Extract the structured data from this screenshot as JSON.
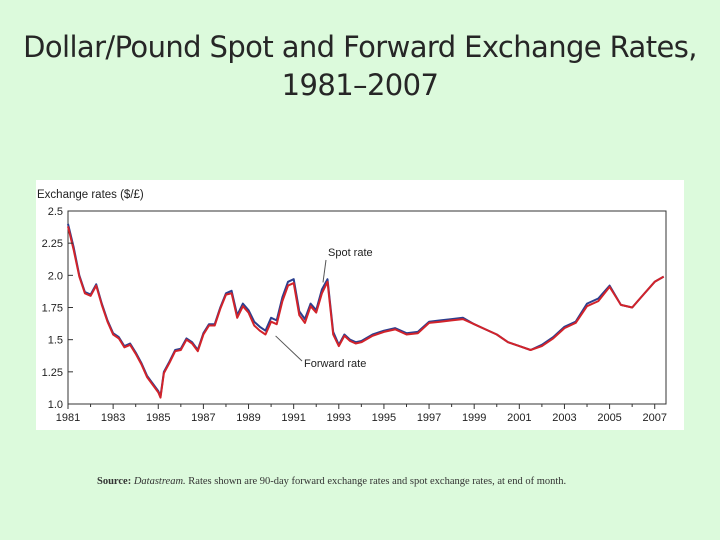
{
  "slide": {
    "title_line1": "Dollar/Pound Spot and Forward Exchange Rates,",
    "title_line2": "1981–2007"
  },
  "source": {
    "label": "Source:",
    "database": "Datastream.",
    "text": " Rates shown are 90-day forward exchange rates and spot exchange rates, at end of month."
  },
  "colors": {
    "spot": "#2b3f8f",
    "forward": "#d2232a",
    "axis": "#333333",
    "annotation_line": "#555555"
  },
  "chart_data": {
    "type": "line",
    "title": "",
    "ylabel": "Exchange rates ($/£)",
    "xlabel": "",
    "xlim": [
      1981,
      2007.5
    ],
    "ylim": [
      1.0,
      2.5
    ],
    "x_ticks": [
      "1981",
      "1983",
      "1985",
      "1987",
      "1989",
      "1991",
      "1993",
      "1995",
      "1997",
      "1999",
      "2001",
      "2003",
      "2005",
      "2007"
    ],
    "y_ticks": [
      "1.0",
      "1.25",
      "1.5",
      "1.75",
      "2.0",
      "2.25",
      "2.5"
    ],
    "annotations": [
      {
        "text": "Spot rate",
        "points_to_year": 1992.3,
        "points_to_value": 1.96
      },
      {
        "text": "Forward rate",
        "points_to_year": 1990.2,
        "points_to_value": 1.56
      }
    ],
    "series": [
      {
        "name": "Spot rate",
        "x": [
          1981.0,
          1981.25,
          1981.5,
          1981.75,
          1982.0,
          1982.25,
          1982.5,
          1982.75,
          1983.0,
          1983.25,
          1983.5,
          1983.75,
          1984.0,
          1984.25,
          1984.5,
          1984.75,
          1985.0,
          1985.1,
          1985.25,
          1985.5,
          1985.75,
          1986.0,
          1986.25,
          1986.5,
          1986.75,
          1987.0,
          1987.25,
          1987.5,
          1987.75,
          1988.0,
          1988.25,
          1988.5,
          1988.75,
          1989.0,
          1989.25,
          1989.5,
          1989.75,
          1990.0,
          1990.25,
          1990.5,
          1990.75,
          1991.0,
          1991.25,
          1991.5,
          1991.75,
          1992.0,
          1992.25,
          1992.5,
          1992.75,
          1993.0,
          1993.25,
          1993.5,
          1993.75,
          1994.0,
          1994.5,
          1995.0,
          1995.5,
          1996.0,
          1996.5,
          1997.0,
          1997.5,
          1998.0,
          1998.5,
          1999.0,
          1999.5,
          2000.0,
          2000.5,
          2001.0,
          2001.5,
          2002.0,
          2002.5,
          2003.0,
          2003.5,
          2004.0,
          2004.5,
          2005.0,
          2005.5,
          2006.0,
          2006.5,
          2007.0,
          2007.4
        ],
        "values": [
          2.4,
          2.22,
          2.0,
          1.87,
          1.85,
          1.93,
          1.78,
          1.65,
          1.55,
          1.52,
          1.45,
          1.47,
          1.4,
          1.32,
          1.22,
          1.16,
          1.1,
          1.06,
          1.25,
          1.33,
          1.42,
          1.43,
          1.51,
          1.48,
          1.42,
          1.55,
          1.62,
          1.62,
          1.75,
          1.86,
          1.88,
          1.69,
          1.78,
          1.73,
          1.64,
          1.6,
          1.57,
          1.67,
          1.65,
          1.83,
          1.95,
          1.97,
          1.72,
          1.66,
          1.78,
          1.73,
          1.89,
          1.97,
          1.56,
          1.46,
          1.54,
          1.5,
          1.48,
          1.49,
          1.54,
          1.57,
          1.59,
          1.55,
          1.56,
          1.64,
          1.65,
          1.66,
          1.67,
          1.62,
          1.58,
          1.54,
          1.48,
          1.45,
          1.42,
          1.46,
          1.52,
          1.6,
          1.64,
          1.78,
          1.82,
          1.92,
          1.77,
          1.75,
          1.85,
          1.95,
          1.99
        ]
      },
      {
        "name": "Forward rate",
        "x": [
          1981.0,
          1981.25,
          1981.5,
          1981.75,
          1982.0,
          1982.25,
          1982.5,
          1982.75,
          1983.0,
          1983.25,
          1983.5,
          1983.75,
          1984.0,
          1984.25,
          1984.5,
          1984.75,
          1985.0,
          1985.1,
          1985.25,
          1985.5,
          1985.75,
          1986.0,
          1986.25,
          1986.5,
          1986.75,
          1987.0,
          1987.25,
          1987.5,
          1987.75,
          1988.0,
          1988.25,
          1988.5,
          1988.75,
          1989.0,
          1989.25,
          1989.5,
          1989.75,
          1990.0,
          1990.25,
          1990.5,
          1990.75,
          1991.0,
          1991.25,
          1991.5,
          1991.75,
          1992.0,
          1992.25,
          1992.5,
          1992.75,
          1993.0,
          1993.25,
          1993.5,
          1993.75,
          1994.0,
          1994.5,
          1995.0,
          1995.5,
          1996.0,
          1996.5,
          1997.0,
          1997.5,
          1998.0,
          1998.5,
          1999.0,
          1999.5,
          2000.0,
          2000.5,
          2001.0,
          2001.5,
          2002.0,
          2002.5,
          2003.0,
          2003.5,
          2004.0,
          2004.5,
          2005.0,
          2005.5,
          2006.0,
          2006.5,
          2007.0,
          2007.4
        ],
        "values": [
          2.38,
          2.2,
          1.99,
          1.86,
          1.84,
          1.92,
          1.77,
          1.64,
          1.54,
          1.51,
          1.44,
          1.46,
          1.39,
          1.31,
          1.21,
          1.15,
          1.09,
          1.05,
          1.24,
          1.32,
          1.41,
          1.42,
          1.5,
          1.47,
          1.41,
          1.54,
          1.61,
          1.61,
          1.74,
          1.85,
          1.86,
          1.67,
          1.76,
          1.71,
          1.61,
          1.57,
          1.54,
          1.64,
          1.62,
          1.8,
          1.92,
          1.94,
          1.69,
          1.63,
          1.76,
          1.71,
          1.86,
          1.95,
          1.54,
          1.45,
          1.53,
          1.49,
          1.47,
          1.48,
          1.53,
          1.56,
          1.58,
          1.54,
          1.55,
          1.63,
          1.64,
          1.65,
          1.66,
          1.62,
          1.58,
          1.54,
          1.48,
          1.45,
          1.42,
          1.45,
          1.51,
          1.59,
          1.63,
          1.76,
          1.8,
          1.91,
          1.77,
          1.75,
          1.85,
          1.95,
          1.99
        ]
      }
    ]
  }
}
